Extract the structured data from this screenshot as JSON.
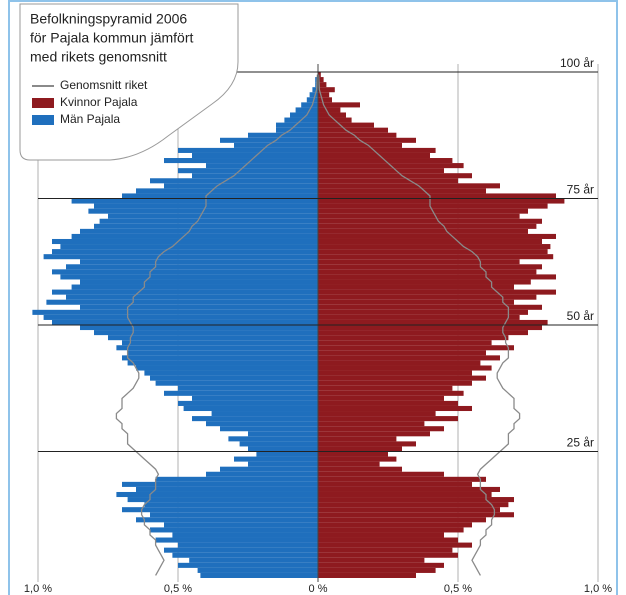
{
  "chart_data": {
    "type": "pyramid",
    "title": [
      "Befolkningspyramid 2006",
      "för Pajala kommun jämfört",
      "med rikets genomsnitt"
    ],
    "y": [
      0,
      1,
      2,
      3,
      4,
      5,
      6,
      7,
      8,
      9,
      10,
      11,
      12,
      13,
      14,
      15,
      16,
      17,
      18,
      19,
      20,
      21,
      22,
      23,
      24,
      25,
      26,
      27,
      28,
      29,
      30,
      31,
      32,
      33,
      34,
      35,
      36,
      37,
      38,
      39,
      40,
      41,
      42,
      43,
      44,
      45,
      46,
      47,
      48,
      49,
      50,
      51,
      52,
      53,
      54,
      55,
      56,
      57,
      58,
      59,
      60,
      61,
      62,
      63,
      64,
      65,
      66,
      67,
      68,
      69,
      70,
      71,
      72,
      73,
      74,
      75,
      76,
      77,
      78,
      79,
      80,
      81,
      82,
      83,
      84,
      85,
      86,
      87,
      88,
      89,
      90,
      91,
      92,
      93,
      94,
      95,
      96,
      97,
      98,
      99
    ],
    "series": [
      {
        "name": "Genomsnitt riket",
        "color": "#8a8a8a",
        "side": "both",
        "values": [
          0.58,
          0.57,
          0.56,
          0.55,
          0.56,
          0.57,
          0.58,
          0.58,
          0.6,
          0.6,
          0.62,
          0.62,
          0.63,
          0.63,
          0.62,
          0.6,
          0.6,
          0.58,
          0.58,
          0.58,
          0.57,
          0.58,
          0.6,
          0.62,
          0.64,
          0.66,
          0.68,
          0.68,
          0.68,
          0.7,
          0.7,
          0.72,
          0.72,
          0.7,
          0.7,
          0.7,
          0.68,
          0.66,
          0.65,
          0.64,
          0.64,
          0.65,
          0.66,
          0.68,
          0.68,
          0.68,
          0.67,
          0.67,
          0.66,
          0.66,
          0.67,
          0.68,
          0.68,
          0.68,
          0.66,
          0.66,
          0.64,
          0.62,
          0.62,
          0.6,
          0.6,
          0.58,
          0.58,
          0.57,
          0.55,
          0.52,
          0.5,
          0.48,
          0.46,
          0.45,
          0.43,
          0.42,
          0.41,
          0.4,
          0.4,
          0.4,
          0.38,
          0.36,
          0.33,
          0.3,
          0.28,
          0.26,
          0.24,
          0.22,
          0.2,
          0.18,
          0.15,
          0.13,
          0.1,
          0.08,
          0.06,
          0.04,
          0.03,
          0.02,
          0.015,
          0.01,
          0.005,
          0.004,
          0.003,
          0.002
        ]
      },
      {
        "name": "Kvinnor Pajala",
        "color": "#8e1a1f",
        "side": "right",
        "values": [
          0.35,
          0.42,
          0.45,
          0.38,
          0.5,
          0.48,
          0.55,
          0.5,
          0.45,
          0.52,
          0.55,
          0.6,
          0.7,
          0.65,
          0.68,
          0.7,
          0.62,
          0.65,
          0.55,
          0.6,
          0.45,
          0.3,
          0.22,
          0.28,
          0.25,
          0.3,
          0.35,
          0.28,
          0.4,
          0.45,
          0.38,
          0.5,
          0.42,
          0.55,
          0.5,
          0.45,
          0.52,
          0.48,
          0.55,
          0.6,
          0.55,
          0.62,
          0.58,
          0.65,
          0.6,
          0.7,
          0.62,
          0.68,
          0.75,
          0.8,
          0.82,
          0.72,
          0.75,
          0.8,
          0.7,
          0.78,
          0.85,
          0.7,
          0.76,
          0.85,
          0.78,
          0.8,
          0.72,
          0.84,
          0.82,
          0.83,
          0.8,
          0.85,
          0.75,
          0.78,
          0.8,
          0.72,
          0.75,
          0.82,
          0.88,
          0.85,
          0.6,
          0.65,
          0.5,
          0.55,
          0.45,
          0.52,
          0.48,
          0.4,
          0.42,
          0.3,
          0.35,
          0.28,
          0.25,
          0.2,
          0.12,
          0.1,
          0.08,
          0.15,
          0.05,
          0.04,
          0.06,
          0.03,
          0.02,
          0.01
        ]
      },
      {
        "name": "Män Pajala",
        "color": "#1f6fbd",
        "side": "left",
        "values": [
          0.42,
          0.43,
          0.5,
          0.46,
          0.52,
          0.55,
          0.5,
          0.58,
          0.52,
          0.6,
          0.55,
          0.65,
          0.6,
          0.7,
          0.62,
          0.68,
          0.72,
          0.65,
          0.7,
          0.58,
          0.4,
          0.35,
          0.25,
          0.3,
          0.22,
          0.25,
          0.28,
          0.32,
          0.25,
          0.35,
          0.4,
          0.45,
          0.38,
          0.48,
          0.5,
          0.45,
          0.55,
          0.5,
          0.58,
          0.6,
          0.62,
          0.65,
          0.68,
          0.7,
          0.68,
          0.72,
          0.7,
          0.75,
          0.8,
          0.85,
          0.95,
          0.98,
          1.02,
          0.85,
          0.97,
          0.9,
          0.95,
          0.88,
          0.85,
          0.92,
          0.95,
          0.9,
          0.85,
          0.98,
          0.95,
          0.92,
          0.95,
          0.88,
          0.85,
          0.8,
          0.78,
          0.75,
          0.82,
          0.8,
          0.88,
          0.7,
          0.65,
          0.55,
          0.6,
          0.45,
          0.5,
          0.4,
          0.55,
          0.45,
          0.5,
          0.3,
          0.35,
          0.25,
          0.15,
          0.15,
          0.12,
          0.1,
          0.08,
          0.06,
          0.04,
          0.03,
          0.02,
          0.01,
          0.01,
          0
        ]
      }
    ],
    "xlim": [
      -1,
      1
    ],
    "xticks": [
      {
        "value": -1,
        "label": "1,0 %"
      },
      {
        "value": -0.5,
        "label": "0,5 %"
      },
      {
        "value": 0,
        "label": "0 %"
      },
      {
        "value": 0.5,
        "label": "0,5 %"
      },
      {
        "value": 1,
        "label": "1,0 %"
      }
    ],
    "ylim": [
      0,
      100
    ],
    "yticks": [
      {
        "value": 25,
        "label": "25 år"
      },
      {
        "value": 50,
        "label": "50 år"
      },
      {
        "value": 75,
        "label": "75 år"
      },
      {
        "value": 100,
        "label": "100 år"
      }
    ],
    "grid": true,
    "legend": "upper left"
  }
}
